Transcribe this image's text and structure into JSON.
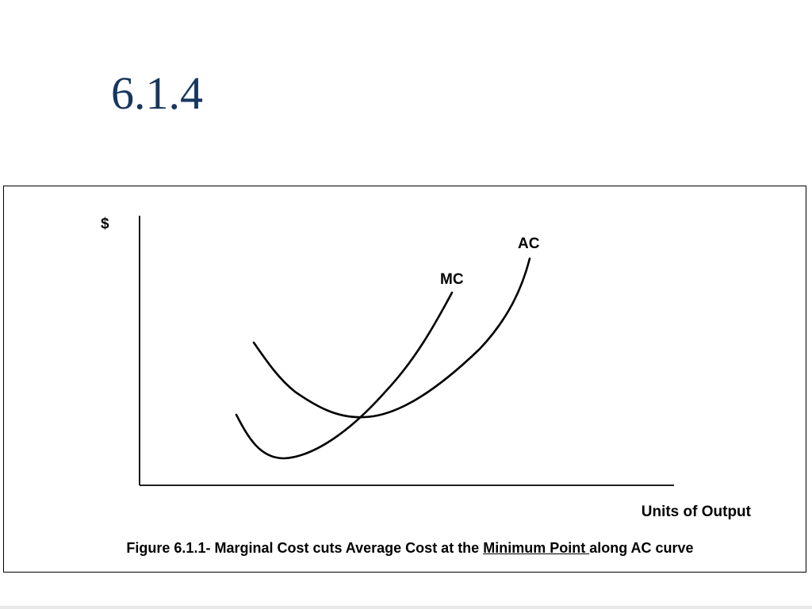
{
  "slide": {
    "title": "6.1.4"
  },
  "diagram": {
    "y_axis_label": "$",
    "x_axis_label": "Units of Output",
    "curves": [
      {
        "name": "MC",
        "label": "MC"
      },
      {
        "name": "AC",
        "label": "AC"
      }
    ]
  },
  "caption": {
    "before": "Figure 6.1.1- Marginal Cost cuts Average Cost at the ",
    "emphasis": "Minimum Point ",
    "after": "along AC curve"
  }
}
